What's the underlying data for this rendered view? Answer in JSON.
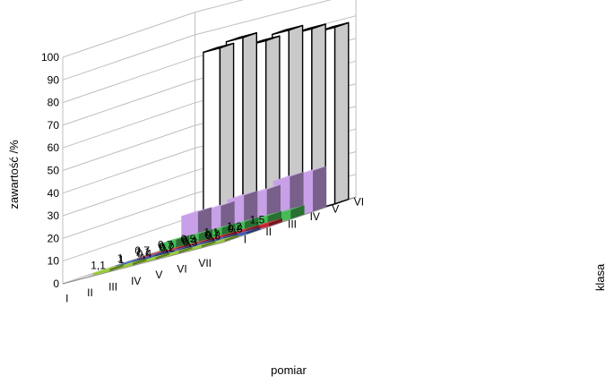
{
  "chart_data": {
    "type": "bar3d",
    "ylabel": "zawartość /%",
    "xlabel": "pomiar",
    "zlabel": "klasa",
    "ylim": [
      0,
      100
    ],
    "yticks": [
      0,
      10,
      20,
      30,
      40,
      50,
      60,
      70,
      80,
      90,
      100
    ],
    "categories": [
      "I",
      "II",
      "III",
      "IV",
      "V",
      "VI",
      "VII"
    ],
    "series": [
      {
        "name": "I",
        "color": "#9ACD32",
        "values": [
          null,
          1.1,
          1,
          0.4,
          0.2,
          0.3,
          0.3
        ],
        "labels": [
          "",
          "1,1",
          "1",
          "0,4",
          "0,2",
          "0,3",
          "0,3"
        ]
      },
      {
        "name": "II",
        "color": "#3355BB",
        "values": [
          null,
          1,
          1.1,
          0.7,
          0.4,
          0.7,
          0.8
        ],
        "labels": [
          "",
          "1",
          "1,1",
          "0,7",
          "0,4",
          "0,7",
          "0,8"
        ]
      },
      {
        "name": "III",
        "color": "#CC2233",
        "values": [
          null,
          0.7,
          0.7,
          0.5,
          1.1,
          1.2,
          1.5
        ],
        "labels": [
          "",
          "0,7",
          "0,7",
          "0,5",
          "1,1",
          "1,2",
          "1,5"
        ]
      },
      {
        "name": "IV",
        "color": "#44BB55",
        "values": [
          null,
          4,
          4,
          4,
          4,
          4,
          4
        ],
        "labels": []
      },
      {
        "name": "V",
        "color": "#C8A0E8",
        "values": [
          null,
          13,
          13,
          15,
          15,
          18,
          18
        ],
        "labels": []
      },
      {
        "name": "VI",
        "color": "#FFFFFF",
        "values": [
          null,
          82,
          84,
          80,
          82,
          80,
          78
        ],
        "labels": []
      }
    ],
    "depth_ticks": [
      "I",
      "II",
      "III",
      "IV",
      "V",
      "VI"
    ],
    "grid": true
  }
}
